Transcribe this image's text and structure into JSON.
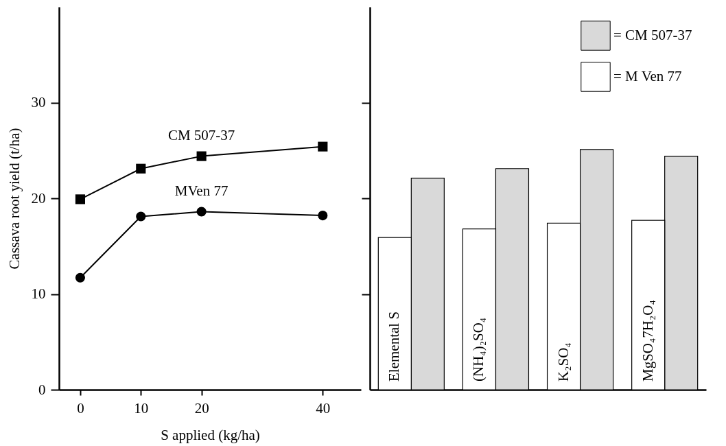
{
  "chart_data": [
    {
      "type": "line",
      "xlabel": "S applied (kg/ha)",
      "ylabel": "Cassava root yield (t/ha)",
      "x": [
        0,
        10,
        20,
        40
      ],
      "xlim": [
        -3.5,
        46.3
      ],
      "xticks": [
        0,
        10,
        20,
        40
      ],
      "ylim": [
        0,
        40
      ],
      "yticks": [
        0,
        10,
        20,
        30
      ],
      "grid": false,
      "legend": false,
      "line_style": "solid",
      "series": [
        {
          "name": "CM 507-37",
          "color": "#000000",
          "marker": "square",
          "values": [
            19.9,
            23.1,
            24.4,
            25.4
          ]
        },
        {
          "name": "MVen 77",
          "color": "#000000",
          "marker": "circle",
          "values": [
            11.7,
            18.1,
            18.6,
            18.2
          ]
        }
      ]
    },
    {
      "type": "bar",
      "categories": [
        "Elemental S",
        "(NH₄)₂SO₄",
        "K₂SO₄",
        "MgSO₄7H₂O₄"
      ],
      "ylim": [
        0,
        40
      ],
      "yticks": [
        10,
        20,
        30
      ],
      "tick_labels": false,
      "grid": false,
      "legend": "top right",
      "series": [
        {
          "name": "= CM 507-37",
          "color": "#d9d9d9",
          "values": [
            22.1,
            23.1,
            25.1,
            24.4
          ]
        },
        {
          "name": "= M Ven 77",
          "color": "#ffffff",
          "values": [
            15.9,
            16.8,
            17.4,
            17.7
          ]
        }
      ]
    }
  ]
}
